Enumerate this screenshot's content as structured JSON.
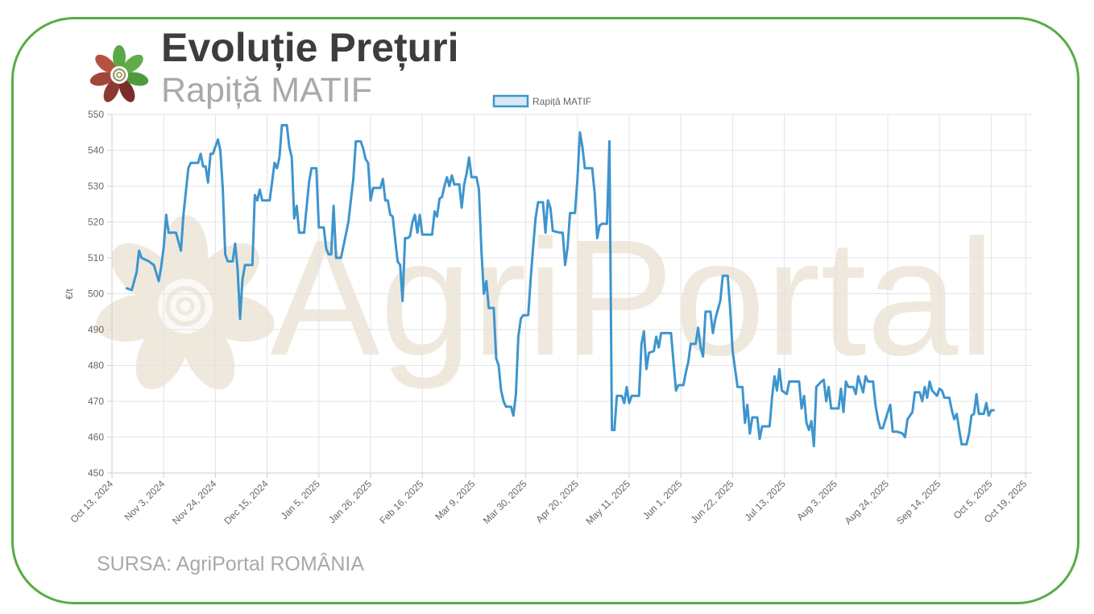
{
  "header": {
    "title": "Evoluție Prețuri",
    "subtitle": "Rapiță MATIF"
  },
  "footer": {
    "source": "SURSA: AgriPortal ROMÂNIA"
  },
  "watermark": {
    "text": "AgriPortal"
  },
  "colors": {
    "frame": "#58ac44",
    "line": "#3e95cd",
    "watermark": "#efe9dd"
  },
  "chart_data": {
    "type": "line",
    "title": "",
    "xlabel": "",
    "ylabel": "€/t",
    "ylim": [
      450,
      550
    ],
    "yticks": [
      550,
      540,
      530,
      520,
      510,
      500,
      490,
      480,
      470,
      460,
      450
    ],
    "grid": true,
    "legend_position": "top-center",
    "x_tick_labels": [
      "Oct 13, 2024",
      "Nov 3, 2024",
      "Nov 24, 2024",
      "Dec 15, 2024",
      "Jan 5, 2025",
      "Jan 26, 2025",
      "Feb 16, 2025",
      "Mar 9, 2025",
      "Mar 30, 2025",
      "Apr 20, 2025",
      "May 11, 2025",
      "Jun 1, 2025",
      "Jun 22, 2025",
      "Jul 13, 2025",
      "Aug 3, 2025",
      "Aug 24, 2025",
      "Sep 14, 2025",
      "Oct 5, 2025",
      "Oct 19, 2025"
    ],
    "series": [
      {
        "name": "Rapiță MATIF",
        "color": "#3e95cd",
        "points": [
          [
            "2024-10-19",
            501.5
          ],
          [
            "2024-10-21",
            501
          ],
          [
            "2024-10-23",
            506
          ],
          [
            "2024-10-24",
            512
          ],
          [
            "2024-10-25",
            510
          ],
          [
            "2024-10-28",
            509
          ],
          [
            "2024-10-30",
            508
          ],
          [
            "2024-11-01",
            503.5
          ],
          [
            "2024-11-02",
            507.5
          ],
          [
            "2024-11-03",
            513
          ],
          [
            "2024-11-04",
            522
          ],
          [
            "2024-11-05",
            517
          ],
          [
            "2024-11-06",
            517
          ],
          [
            "2024-11-08",
            517
          ],
          [
            "2024-11-10",
            512
          ],
          [
            "2024-11-11",
            522
          ],
          [
            "2024-11-13",
            535
          ],
          [
            "2024-11-14",
            536.5
          ],
          [
            "2024-11-17",
            536.5
          ],
          [
            "2024-11-18",
            539
          ],
          [
            "2024-11-19",
            535.5
          ],
          [
            "2024-11-20",
            535.5
          ],
          [
            "2024-11-21",
            531
          ],
          [
            "2024-11-22",
            539
          ],
          [
            "2024-11-23",
            539
          ],
          [
            "2024-11-25",
            543
          ],
          [
            "2024-11-26",
            540
          ],
          [
            "2024-11-27",
            529
          ],
          [
            "2024-11-28",
            511
          ],
          [
            "2024-11-29",
            509
          ],
          [
            "2024-12-01",
            509
          ],
          [
            "2024-12-02",
            514
          ],
          [
            "2024-12-03",
            507
          ],
          [
            "2024-12-04",
            493
          ],
          [
            "2024-12-05",
            504
          ],
          [
            "2024-12-06",
            508
          ],
          [
            "2024-12-09",
            508
          ],
          [
            "2024-12-10",
            527.5
          ],
          [
            "2024-12-11",
            526
          ],
          [
            "2024-12-12",
            529
          ],
          [
            "2024-12-13",
            526
          ],
          [
            "2024-12-16",
            526
          ],
          [
            "2024-12-17",
            531
          ],
          [
            "2024-12-18",
            536.5
          ],
          [
            "2024-12-19",
            535
          ],
          [
            "2024-12-20",
            538
          ],
          [
            "2024-12-21",
            547
          ],
          [
            "2024-12-23",
            547
          ],
          [
            "2024-12-24",
            541
          ],
          [
            "2024-12-25",
            538
          ],
          [
            "2024-12-26",
            521
          ],
          [
            "2024-12-27",
            524.5
          ],
          [
            "2024-12-28",
            517
          ],
          [
            "2024-12-30",
            517
          ],
          [
            "2025-01-01",
            531
          ],
          [
            "2025-01-02",
            535
          ],
          [
            "2025-01-04",
            535
          ],
          [
            "2025-01-05",
            518.5
          ],
          [
            "2025-01-07",
            518.5
          ],
          [
            "2025-01-08",
            512.5
          ],
          [
            "2025-01-09",
            511
          ],
          [
            "2025-01-10",
            511
          ],
          [
            "2025-01-11",
            524.5
          ],
          [
            "2025-01-12",
            510
          ],
          [
            "2025-01-14",
            510
          ],
          [
            "2025-01-17",
            520
          ],
          [
            "2025-01-18",
            526
          ],
          [
            "2025-01-19",
            532
          ],
          [
            "2025-01-20",
            542.5
          ],
          [
            "2025-01-22",
            542.5
          ],
          [
            "2025-01-23",
            540.5
          ],
          [
            "2025-01-24",
            537.5
          ],
          [
            "2025-01-25",
            536.5
          ],
          [
            "2025-01-26",
            526
          ],
          [
            "2025-01-27",
            529.5
          ],
          [
            "2025-01-30",
            529.5
          ],
          [
            "2025-01-31",
            532
          ],
          [
            "2025-02-01",
            526
          ],
          [
            "2025-02-02",
            526
          ],
          [
            "2025-02-03",
            522
          ],
          [
            "2025-02-04",
            521.5
          ],
          [
            "2025-02-05",
            515
          ],
          [
            "2025-02-06",
            509
          ],
          [
            "2025-02-07",
            508
          ],
          [
            "2025-02-08",
            498
          ],
          [
            "2025-02-09",
            515.5
          ],
          [
            "2025-02-10",
            515.5
          ],
          [
            "2025-02-11",
            516
          ],
          [
            "2025-02-12",
            520
          ],
          [
            "2025-02-13",
            522
          ],
          [
            "2025-02-14",
            517
          ],
          [
            "2025-02-15",
            522
          ],
          [
            "2025-02-16",
            516.5
          ],
          [
            "2025-02-18",
            516.5
          ],
          [
            "2025-02-20",
            516.5
          ],
          [
            "2025-02-21",
            523
          ],
          [
            "2025-02-22",
            521.5
          ],
          [
            "2025-02-23",
            526.5
          ],
          [
            "2025-02-24",
            527
          ],
          [
            "2025-02-25",
            530
          ],
          [
            "2025-02-26",
            532.5
          ],
          [
            "2025-02-27",
            530
          ],
          [
            "2025-02-28",
            533
          ],
          [
            "2025-03-01",
            530.5
          ],
          [
            "2025-03-03",
            530.5
          ],
          [
            "2025-03-04",
            524
          ],
          [
            "2025-03-05",
            530.5
          ],
          [
            "2025-03-06",
            533.5
          ],
          [
            "2025-03-07",
            538
          ],
          [
            "2025-03-08",
            532.5
          ],
          [
            "2025-03-10",
            532.5
          ],
          [
            "2025-03-11",
            529
          ],
          [
            "2025-03-12",
            512
          ],
          [
            "2025-03-13",
            500
          ],
          [
            "2025-03-14",
            503.5
          ],
          [
            "2025-03-15",
            496
          ],
          [
            "2025-03-17",
            496
          ],
          [
            "2025-03-18",
            482
          ],
          [
            "2025-03-19",
            480
          ],
          [
            "2025-03-20",
            473
          ],
          [
            "2025-03-21",
            470
          ],
          [
            "2025-03-22",
            468.5
          ],
          [
            "2025-03-24",
            468.5
          ],
          [
            "2025-03-25",
            466
          ],
          [
            "2025-03-26",
            472
          ],
          [
            "2025-03-27",
            488
          ],
          [
            "2025-03-28",
            493
          ],
          [
            "2025-03-29",
            494
          ],
          [
            "2025-03-31",
            494
          ],
          [
            "2025-04-01",
            504
          ],
          [
            "2025-04-02",
            513
          ],
          [
            "2025-04-03",
            521
          ],
          [
            "2025-04-04",
            525.5
          ],
          [
            "2025-04-06",
            525.5
          ],
          [
            "2025-04-07",
            517
          ],
          [
            "2025-04-08",
            526
          ],
          [
            "2025-04-09",
            524
          ],
          [
            "2025-04-10",
            517.5
          ],
          [
            "2025-04-13",
            517
          ],
          [
            "2025-04-14",
            517
          ],
          [
            "2025-04-15",
            508
          ],
          [
            "2025-04-16",
            513
          ],
          [
            "2025-04-17",
            522.5
          ],
          [
            "2025-04-19",
            522.5
          ],
          [
            "2025-04-20",
            532
          ],
          [
            "2025-04-21",
            545
          ],
          [
            "2025-04-22",
            541
          ],
          [
            "2025-04-23",
            535
          ],
          [
            "2025-04-26",
            535
          ],
          [
            "2025-04-27",
            528
          ],
          [
            "2025-04-28",
            515.5
          ],
          [
            "2025-04-29",
            519
          ],
          [
            "2025-04-30",
            519.5
          ],
          [
            "2025-05-02",
            519.5
          ],
          [
            "2025-05-03",
            542.5
          ],
          [
            "2025-05-04",
            462
          ],
          [
            "2025-05-05",
            462
          ],
          [
            "2025-05-06",
            471.5
          ],
          [
            "2025-05-08",
            471.5
          ],
          [
            "2025-05-09",
            469.5
          ],
          [
            "2025-05-10",
            474
          ],
          [
            "2025-05-11",
            469.5
          ],
          [
            "2025-05-12",
            471.5
          ],
          [
            "2025-05-15",
            471.5
          ],
          [
            "2025-05-16",
            486
          ],
          [
            "2025-05-17",
            489.5
          ],
          [
            "2025-05-18",
            479
          ],
          [
            "2025-05-19",
            483.5
          ],
          [
            "2025-05-21",
            484
          ],
          [
            "2025-05-22",
            488
          ],
          [
            "2025-05-23",
            485
          ],
          [
            "2025-05-24",
            489
          ],
          [
            "2025-05-28",
            489
          ],
          [
            "2025-05-29",
            481
          ],
          [
            "2025-05-30",
            473
          ],
          [
            "2025-05-31",
            474.5
          ],
          [
            "2025-06-02",
            474.5
          ],
          [
            "2025-06-03",
            478
          ],
          [
            "2025-06-04",
            481
          ],
          [
            "2025-06-05",
            486
          ],
          [
            "2025-06-07",
            486
          ],
          [
            "2025-06-08",
            490.5
          ],
          [
            "2025-06-09",
            485
          ],
          [
            "2025-06-10",
            482.5
          ],
          [
            "2025-06-11",
            495
          ],
          [
            "2025-06-13",
            495
          ],
          [
            "2025-06-14",
            489
          ],
          [
            "2025-06-15",
            493
          ],
          [
            "2025-06-17",
            498
          ],
          [
            "2025-06-18",
            505
          ],
          [
            "2025-06-20",
            505
          ],
          [
            "2025-06-21",
            496
          ],
          [
            "2025-06-22",
            484
          ],
          [
            "2025-06-23",
            479
          ],
          [
            "2025-06-24",
            474
          ],
          [
            "2025-06-26",
            474
          ],
          [
            "2025-06-27",
            464
          ],
          [
            "2025-06-28",
            469
          ],
          [
            "2025-06-29",
            461
          ],
          [
            "2025-06-30",
            465.5
          ],
          [
            "2025-07-02",
            465.5
          ],
          [
            "2025-07-03",
            459.5
          ],
          [
            "2025-07-04",
            463
          ],
          [
            "2025-07-07",
            463
          ],
          [
            "2025-07-08",
            471
          ],
          [
            "2025-07-09",
            477
          ],
          [
            "2025-07-10",
            473
          ],
          [
            "2025-07-11",
            479
          ],
          [
            "2025-07-12",
            473
          ],
          [
            "2025-07-14",
            472
          ],
          [
            "2025-07-15",
            475.5
          ],
          [
            "2025-07-17",
            475.5
          ],
          [
            "2025-07-19",
            475.5
          ],
          [
            "2025-07-20",
            468
          ],
          [
            "2025-07-21",
            471.5
          ],
          [
            "2025-07-22",
            464
          ],
          [
            "2025-07-23",
            462
          ],
          [
            "2025-07-24",
            464.5
          ],
          [
            "2025-07-25",
            457.5
          ],
          [
            "2025-07-26",
            474
          ],
          [
            "2025-07-28",
            475.5
          ],
          [
            "2025-07-29",
            476
          ],
          [
            "2025-07-30",
            470
          ],
          [
            "2025-07-31",
            474
          ],
          [
            "2025-08-01",
            468
          ],
          [
            "2025-08-04",
            468
          ],
          [
            "2025-08-05",
            473.5
          ],
          [
            "2025-08-06",
            467
          ],
          [
            "2025-08-07",
            475.5
          ],
          [
            "2025-08-08",
            474
          ],
          [
            "2025-08-10",
            474
          ],
          [
            "2025-08-11",
            472
          ],
          [
            "2025-08-12",
            477
          ],
          [
            "2025-08-14",
            472.5
          ],
          [
            "2025-08-15",
            477
          ],
          [
            "2025-08-16",
            475.5
          ],
          [
            "2025-08-18",
            475.5
          ],
          [
            "2025-08-19",
            469
          ],
          [
            "2025-08-20",
            465
          ],
          [
            "2025-08-21",
            462.5
          ],
          [
            "2025-08-22",
            462.5
          ],
          [
            "2025-08-24",
            467
          ],
          [
            "2025-08-25",
            469
          ],
          [
            "2025-08-26",
            461.5
          ],
          [
            "2025-08-28",
            461.5
          ],
          [
            "2025-08-30",
            461
          ],
          [
            "2025-08-31",
            460
          ],
          [
            "2025-09-01",
            465
          ],
          [
            "2025-09-03",
            467
          ],
          [
            "2025-09-04",
            472.5
          ],
          [
            "2025-09-06",
            472.5
          ],
          [
            "2025-09-07",
            470
          ],
          [
            "2025-09-08",
            474
          ],
          [
            "2025-09-09",
            471
          ],
          [
            "2025-09-10",
            475.5
          ],
          [
            "2025-09-11",
            473
          ],
          [
            "2025-09-13",
            471.5
          ],
          [
            "2025-09-14",
            473.5
          ],
          [
            "2025-09-15",
            473
          ],
          [
            "2025-09-16",
            471
          ],
          [
            "2025-09-18",
            471
          ],
          [
            "2025-09-19",
            467.5
          ],
          [
            "2025-09-20",
            465
          ],
          [
            "2025-09-21",
            466.5
          ],
          [
            "2025-09-22",
            462
          ],
          [
            "2025-09-23",
            458
          ],
          [
            "2025-09-25",
            458
          ],
          [
            "2025-09-26",
            461
          ],
          [
            "2025-09-27",
            466
          ],
          [
            "2025-09-28",
            466.5
          ],
          [
            "2025-09-29",
            472
          ],
          [
            "2025-09-30",
            466.5
          ],
          [
            "2025-10-02",
            466.5
          ],
          [
            "2025-10-03",
            469.5
          ],
          [
            "2025-10-04",
            466
          ],
          [
            "2025-10-05",
            467.5
          ],
          [
            "2025-10-06",
            467.5
          ]
        ]
      }
    ]
  }
}
